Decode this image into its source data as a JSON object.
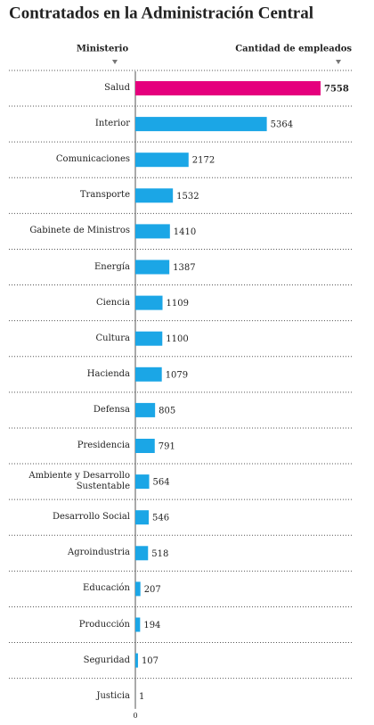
{
  "chart_data": {
    "type": "hbar",
    "title": "Contratados en la Administración Central",
    "category_header": "Ministerio",
    "value_header": "Cantidad de empleados",
    "categories": [
      "Salud",
      "Interior",
      "Comunicaciones",
      "Transporte",
      "Gabinete de Ministros",
      "Energía",
      "Ciencia",
      "Cultura",
      "Hacienda",
      "Defensa",
      "Presidencia",
      "Ambiente y Desarrollo Sustentable",
      "Desarrollo Social",
      "Agroindustria",
      "Educación",
      "Producción",
      "Seguridad",
      "Justicia"
    ],
    "values": [
      7558,
      5364,
      2172,
      1532,
      1410,
      1387,
      1109,
      1100,
      1079,
      805,
      791,
      564,
      546,
      518,
      207,
      194,
      107,
      1
    ],
    "colors": [
      "#e5007d",
      "#1ba6e6",
      "#1ba6e6",
      "#1ba6e6",
      "#1ba6e6",
      "#1ba6e6",
      "#1ba6e6",
      "#1ba6e6",
      "#1ba6e6",
      "#1ba6e6",
      "#1ba6e6",
      "#1ba6e6",
      "#1ba6e6",
      "#1ba6e6",
      "#1ba6e6",
      "#1ba6e6",
      "#1ba6e6",
      "#1ba6e6"
    ],
    "xlim": [
      0,
      7558
    ],
    "xticks": [
      0
    ]
  }
}
